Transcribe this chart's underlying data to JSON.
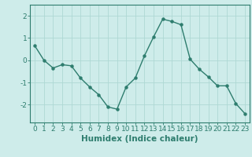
{
  "x": [
    0,
    1,
    2,
    3,
    4,
    5,
    6,
    7,
    8,
    9,
    10,
    11,
    12,
    13,
    14,
    15,
    16,
    17,
    18,
    19,
    20,
    21,
    22,
    23
  ],
  "y": [
    0.65,
    0.0,
    -0.35,
    -0.2,
    -0.25,
    -0.8,
    -1.2,
    -1.55,
    -2.1,
    -2.2,
    -1.2,
    -0.8,
    0.2,
    1.05,
    1.85,
    1.75,
    1.6,
    0.05,
    -0.4,
    -0.75,
    -1.15,
    -1.15,
    -1.95,
    -2.4
  ],
  "line_color": "#2e7d6e",
  "marker": "o",
  "marker_size": 2.2,
  "line_width": 1.0,
  "bg_color": "#ceecea",
  "grid_color": "#aed8d4",
  "xlabel": "Humidex (Indice chaleur)",
  "xlabel_fontsize": 7.5,
  "xlim": [
    -0.5,
    23.5
  ],
  "ylim": [
    -2.8,
    2.5
  ],
  "yticks": [
    -2,
    -1,
    0,
    1,
    2
  ],
  "xticks": [
    0,
    1,
    2,
    3,
    4,
    5,
    6,
    7,
    8,
    9,
    10,
    11,
    12,
    13,
    14,
    15,
    16,
    17,
    18,
    19,
    20,
    21,
    22,
    23
  ],
  "tick_fontsize": 6.5,
  "axis_color": "#2e7d6e",
  "spine_color": "#2e7d6e"
}
